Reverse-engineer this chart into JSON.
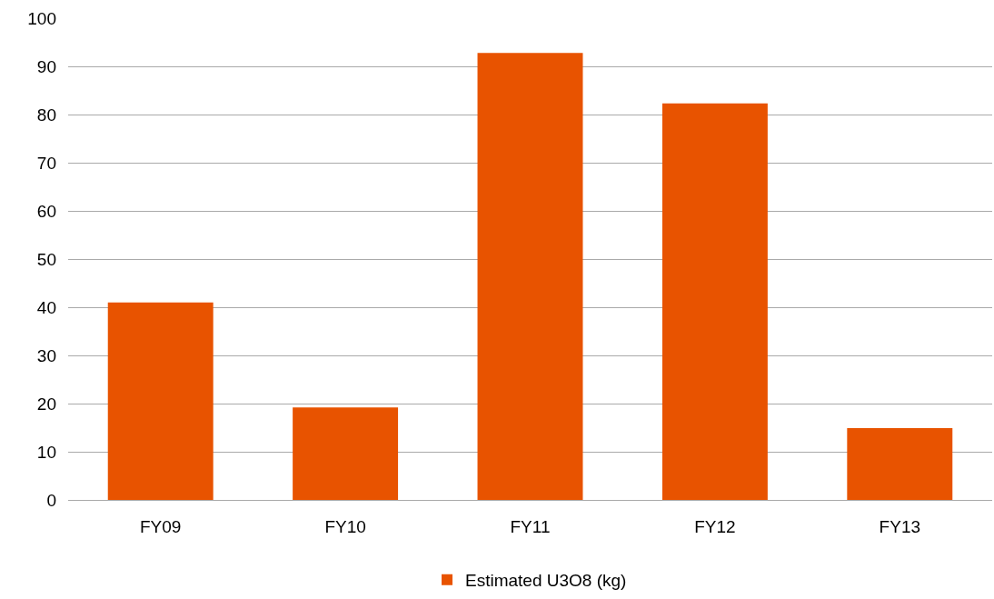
{
  "chart_data": {
    "type": "bar",
    "categories": [
      "FY09",
      "FY10",
      "FY11",
      "FY12",
      "FY13"
    ],
    "series": [
      {
        "name": "Estimated U3O8 (kg)",
        "color": "#e85300",
        "values": [
          41,
          19.2,
          92.8,
          82.3,
          14.9
        ]
      }
    ],
    "ylim": [
      0,
      100
    ],
    "yticks": [
      0,
      10,
      20,
      30,
      40,
      50,
      60,
      70,
      80,
      90,
      100
    ],
    "grid": "y",
    "legend": "bottom"
  }
}
